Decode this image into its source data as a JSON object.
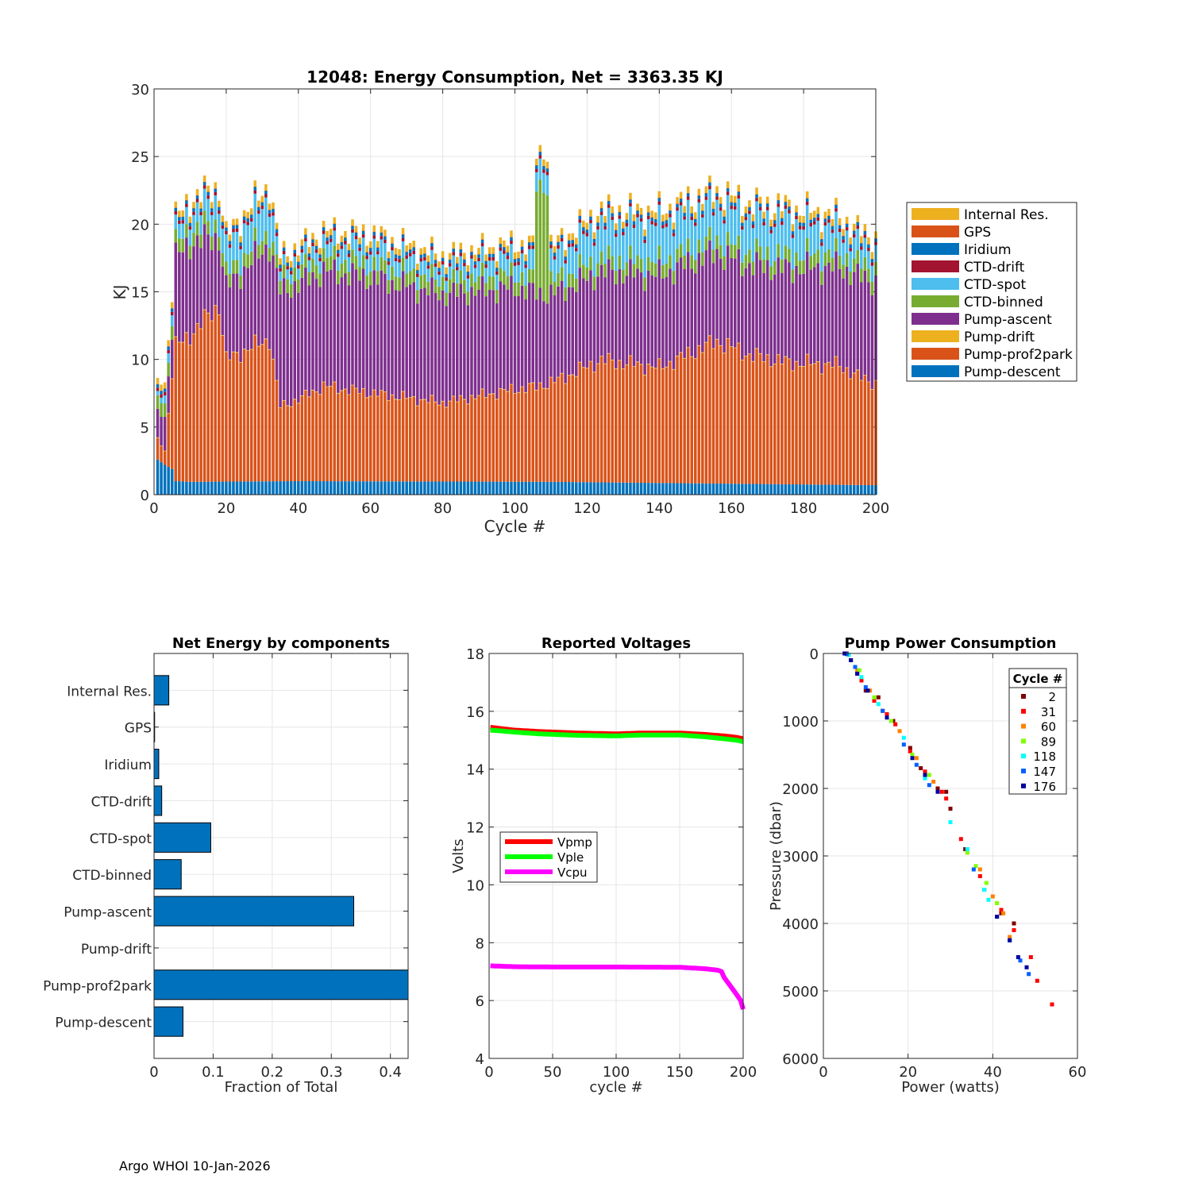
{
  "footer": "Argo WHOI 10-Jan-2026",
  "colors": {
    "Internal Res.": "#EDB120",
    "GPS": "#D95319",
    "Iridium": "#0072BD",
    "CTD-drift": "#A2142F",
    "CTD-spot": "#4DBEEE",
    "CTD-binned": "#77AC30",
    "Pump-ascent": "#7E2F8E",
    "Pump-drift": "#EDB120",
    "Pump-prof2park": "#D95319",
    "Pump-descent": "#0072BD"
  },
  "chart_data": [
    {
      "id": "energy",
      "type": "bar",
      "stacked": true,
      "title": "12048: Energy Consumption,  Net = 3363.35 KJ",
      "xlabel": "Cycle #",
      "ylabel": "KJ",
      "xlim": [
        0,
        200
      ],
      "ylim": [
        0,
        30
      ],
      "xticks": [
        0,
        20,
        40,
        60,
        80,
        100,
        120,
        140,
        160,
        180,
        200
      ],
      "yticks": [
        0,
        5,
        10,
        15,
        20,
        25,
        30
      ],
      "grid": true,
      "legend_position": "outside-right",
      "legend": [
        "Internal Res.",
        "GPS",
        "Iridium",
        "CTD-drift",
        "CTD-spot",
        "CTD-binned",
        "Pump-ascent",
        "Pump-drift",
        "Pump-prof2park",
        "Pump-descent"
      ],
      "stack_order": [
        "Pump-descent",
        "Pump-prof2park",
        "Pump-drift",
        "Pump-ascent",
        "CTD-binned",
        "CTD-spot",
        "CTD-drift",
        "Iridium",
        "GPS",
        "Internal Res."
      ],
      "cycles_range": [
        1,
        200
      ],
      "series_anchors": {
        "Pump-descent": [
          [
            1,
            2.6
          ],
          [
            3,
            2.2
          ],
          [
            5,
            1.9
          ],
          [
            6,
            1.0
          ],
          [
            10,
            0.95
          ],
          [
            40,
            1.0
          ],
          [
            110,
            0.95
          ],
          [
            200,
            0.7
          ]
        ],
        "Pump-prof2park": [
          [
            1,
            1.5
          ],
          [
            3,
            1.0
          ],
          [
            6,
            10.0
          ],
          [
            8,
            10.3
          ],
          [
            18,
            13.0
          ],
          [
            20,
            9.0
          ],
          [
            32,
            10.5
          ],
          [
            35,
            5.5
          ],
          [
            40,
            6.0
          ],
          [
            47,
            7.0
          ],
          [
            60,
            6.5
          ],
          [
            80,
            5.8
          ],
          [
            100,
            6.8
          ],
          [
            106,
            7.0
          ],
          [
            112,
            7.5
          ],
          [
            124,
            9.0
          ],
          [
            140,
            8.5
          ],
          [
            156,
            10.5
          ],
          [
            165,
            9.5
          ],
          [
            175,
            9.0
          ],
          [
            190,
            8.8
          ],
          [
            195,
            8.0
          ],
          [
            200,
            7.5
          ]
        ],
        "Pump-drift": [
          [
            1,
            0.05
          ],
          [
            200,
            0.05
          ]
        ],
        "Pump-ascent": [
          [
            1,
            2.0
          ],
          [
            5,
            3.0
          ],
          [
            6,
            6.5
          ],
          [
            10,
            6.8
          ],
          [
            18,
            5.0
          ],
          [
            32,
            7.0
          ],
          [
            35,
            8.5
          ],
          [
            60,
            8.5
          ],
          [
            80,
            8.0
          ],
          [
            100,
            7.5
          ],
          [
            110,
            6.5
          ],
          [
            124,
            6.5
          ],
          [
            140,
            6.8
          ],
          [
            160,
            6.5
          ],
          [
            180,
            7.0
          ],
          [
            200,
            7.5
          ]
        ],
        "CTD-binned": [
          [
            1,
            1.0
          ],
          [
            200,
            1.0
          ]
        ],
        "CTD-spot": [
          [
            1,
            0.3
          ],
          [
            6,
            1.0
          ],
          [
            18,
            1.8
          ],
          [
            32,
            2.5
          ],
          [
            35,
            0.7
          ],
          [
            60,
            1.3
          ],
          [
            80,
            0.9
          ],
          [
            100,
            1.3
          ],
          [
            110,
            1.6
          ],
          [
            124,
            2.6
          ],
          [
            140,
            2.8
          ],
          [
            156,
            2.6
          ],
          [
            175,
            2.6
          ],
          [
            200,
            1.2
          ]
        ],
        "CTD-drift": [
          [
            1,
            0.25
          ],
          [
            200,
            0.25
          ]
        ],
        "Iridium": [
          [
            1,
            0.25
          ],
          [
            200,
            0.25
          ]
        ],
        "GPS": [
          [
            1,
            0.02
          ],
          [
            200,
            0.02
          ]
        ],
        "Internal Res.": [
          [
            1,
            0.45
          ],
          [
            200,
            0.5
          ]
        ]
      },
      "anomaly": {
        "cycles": [
          106,
          107,
          108,
          109
        ],
        "series": "CTD-binned",
        "value": 8.0
      }
    },
    {
      "id": "components",
      "type": "barh",
      "title": "Net Energy by components",
      "xlabel": "Fraction of Total",
      "xlim": [
        0,
        0.43
      ],
      "xticks": [
        0,
        0.1,
        0.2,
        0.3,
        0.4
      ],
      "xtick_labels": [
        "0",
        "0.1",
        "0.2",
        "0.3",
        "0.4"
      ],
      "categories": [
        "Internal Res.",
        "GPS",
        "Iridium",
        "CTD-drift",
        "CTD-spot",
        "CTD-binned",
        "Pump-ascent",
        "Pump-drift",
        "Pump-prof2park",
        "Pump-descent"
      ],
      "values": [
        0.025,
        0.001,
        0.008,
        0.013,
        0.096,
        0.046,
        0.338,
        0.0,
        0.43,
        0.049
      ],
      "grid": true
    },
    {
      "id": "voltages",
      "type": "line",
      "title": "Reported Voltages",
      "xlabel": "cycle #",
      "ylabel": "Volts",
      "xlim": [
        0,
        200
      ],
      "ylim": [
        4,
        18
      ],
      "xticks": [
        0,
        50,
        100,
        150,
        200
      ],
      "yticks": [
        4,
        6,
        8,
        10,
        12,
        14,
        16,
        18
      ],
      "grid": true,
      "legend_position": "middle-left",
      "series": [
        {
          "name": "Vpmp",
          "color": "#ff0000",
          "x": [
            1,
            10,
            20,
            40,
            70,
            100,
            120,
            150,
            170,
            185,
            195,
            200
          ],
          "values": [
            15.45,
            15.4,
            15.35,
            15.3,
            15.25,
            15.22,
            15.25,
            15.25,
            15.2,
            15.15,
            15.1,
            15.05
          ]
        },
        {
          "name": "Vple",
          "color": "#00ff00",
          "x": [
            1,
            10,
            20,
            40,
            70,
            100,
            120,
            150,
            170,
            185,
            195,
            200
          ],
          "values": [
            15.35,
            15.32,
            15.28,
            15.22,
            15.17,
            15.15,
            15.18,
            15.18,
            15.12,
            15.05,
            15.0,
            14.95
          ]
        },
        {
          "name": "Vcpu",
          "color": "#ff00ff",
          "x": [
            1,
            20,
            50,
            100,
            150,
            170,
            180,
            183,
            185,
            190,
            195,
            198,
            200
          ],
          "values": [
            7.2,
            7.17,
            7.16,
            7.16,
            7.15,
            7.1,
            7.05,
            7.0,
            6.8,
            6.5,
            6.2,
            6.0,
            5.7
          ]
        }
      ]
    },
    {
      "id": "pump",
      "type": "scatter",
      "title": "Pump Power Consumption",
      "xlabel": "Power (watts)",
      "ylabel": "Pressure (dbar)",
      "xlim": [
        0,
        60
      ],
      "ylim": [
        0,
        6000
      ],
      "y_reversed": true,
      "xticks": [
        0,
        20,
        40,
        60
      ],
      "yticks": [
        0,
        1000,
        2000,
        3000,
        4000,
        5000,
        6000
      ],
      "grid": true,
      "legend_title": "Cycle #",
      "legend_position": "top-right",
      "series": [
        {
          "name": "2",
          "color": "#800000",
          "x": [
            5.5,
            6.5,
            8,
            10,
            13,
            14,
            16.5,
            20.5,
            23,
            27,
            29,
            30,
            33.5,
            38,
            42,
            45
          ],
          "values": [
            0,
            100,
            300,
            550,
            650,
            850,
            1000,
            1400,
            1700,
            2000,
            2050,
            2300,
            2900,
            3500,
            3850,
            4000
          ]
        },
        {
          "name": "31",
          "color": "#ff0000",
          "x": [
            6,
            7.5,
            9,
            12,
            15,
            17,
            20.5,
            24,
            28,
            29,
            32.5,
            37,
            42,
            45,
            49,
            50.5,
            54
          ],
          "values": [
            20,
            200,
            400,
            700,
            900,
            1050,
            1450,
            1750,
            2050,
            2150,
            2750,
            3300,
            3800,
            4100,
            4500,
            4850,
            5200
          ]
        },
        {
          "name": "60",
          "color": "#ff8000",
          "x": [
            6,
            8,
            11,
            14,
            18,
            22,
            26,
            34,
            37,
            40,
            42.5,
            44
          ],
          "values": [
            20,
            250,
            550,
            850,
            1150,
            1550,
            1900,
            2950,
            3200,
            3600,
            3850,
            4200
          ]
        },
        {
          "name": "89",
          "color": "#80ff00",
          "x": [
            6,
            8.5,
            12,
            16,
            21,
            25,
            34,
            36,
            38.5,
            41
          ],
          "values": [
            20,
            250,
            650,
            1000,
            1500,
            1800,
            2950,
            3150,
            3400,
            3700
          ]
        },
        {
          "name": "118",
          "color": "#00ffff",
          "x": [
            6,
            9,
            13,
            19,
            24,
            30,
            34,
            38,
            39
          ],
          "values": [
            20,
            350,
            750,
            1250,
            1850,
            2500,
            2900,
            3500,
            3650
          ]
        },
        {
          "name": "147",
          "color": "#0060ff",
          "x": [
            5.5,
            7.5,
            10,
            14,
            19,
            22,
            25,
            35.5,
            41,
            44,
            46.5,
            48.5
          ],
          "values": [
            10,
            200,
            500,
            850,
            1350,
            1650,
            1950,
            3200,
            3900,
            4250,
            4550,
            4750
          ]
        },
        {
          "name": "176",
          "color": "#0000a0",
          "x": [
            5,
            6.5,
            8,
            10.5,
            15,
            21,
            24,
            27,
            41,
            44,
            46,
            48
          ],
          "values": [
            0,
            100,
            300,
            550,
            950,
            1550,
            1800,
            2050,
            3900,
            4250,
            4500,
            4650
          ]
        }
      ]
    }
  ]
}
